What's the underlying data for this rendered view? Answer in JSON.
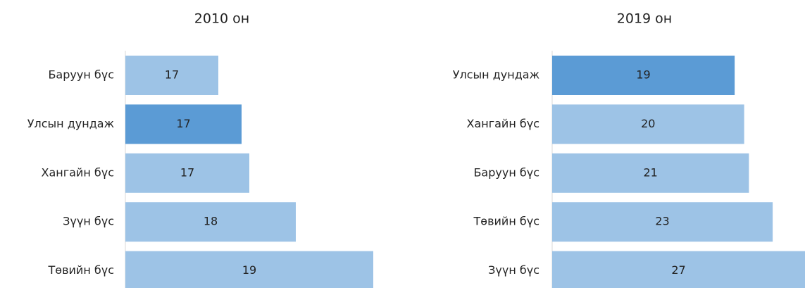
{
  "chart_data": [
    {
      "type": "barh",
      "title": "2010 он",
      "categories": [
        "Баруун бүс",
        "Улсын дундаж",
        "Хангайн бүс",
        "Зүүн бүс",
        "Төвийн бүс"
      ],
      "values": [
        16.9,
        17.2,
        17.3,
        17.9,
        18.9
      ],
      "value_labels": [
        "17",
        "17",
        "17",
        "18",
        "19"
      ],
      "colors": [
        "#9dc3e6",
        "#5b9bd5",
        "#9dc3e6",
        "#9dc3e6",
        "#9dc3e6"
      ],
      "xlim": [
        15.7,
        19.1
      ]
    },
    {
      "type": "barh",
      "title": "2019 он",
      "categories": [
        "Улсын дундаж",
        "Хангайн бүс",
        "Баруун бүс",
        "Төвийн бүс",
        "Зүүн бүс"
      ],
      "values": [
        19.2,
        20.2,
        20.7,
        23.2,
        26.9
      ],
      "value_labels": [
        "19",
        "20",
        "21",
        "23",
        "27"
      ],
      "colors": [
        "#5b9bd5",
        "#9dc3e6",
        "#9dc3e6",
        "#9dc3e6",
        "#9dc3e6"
      ],
      "xlim": [
        0,
        26.6
      ]
    }
  ]
}
